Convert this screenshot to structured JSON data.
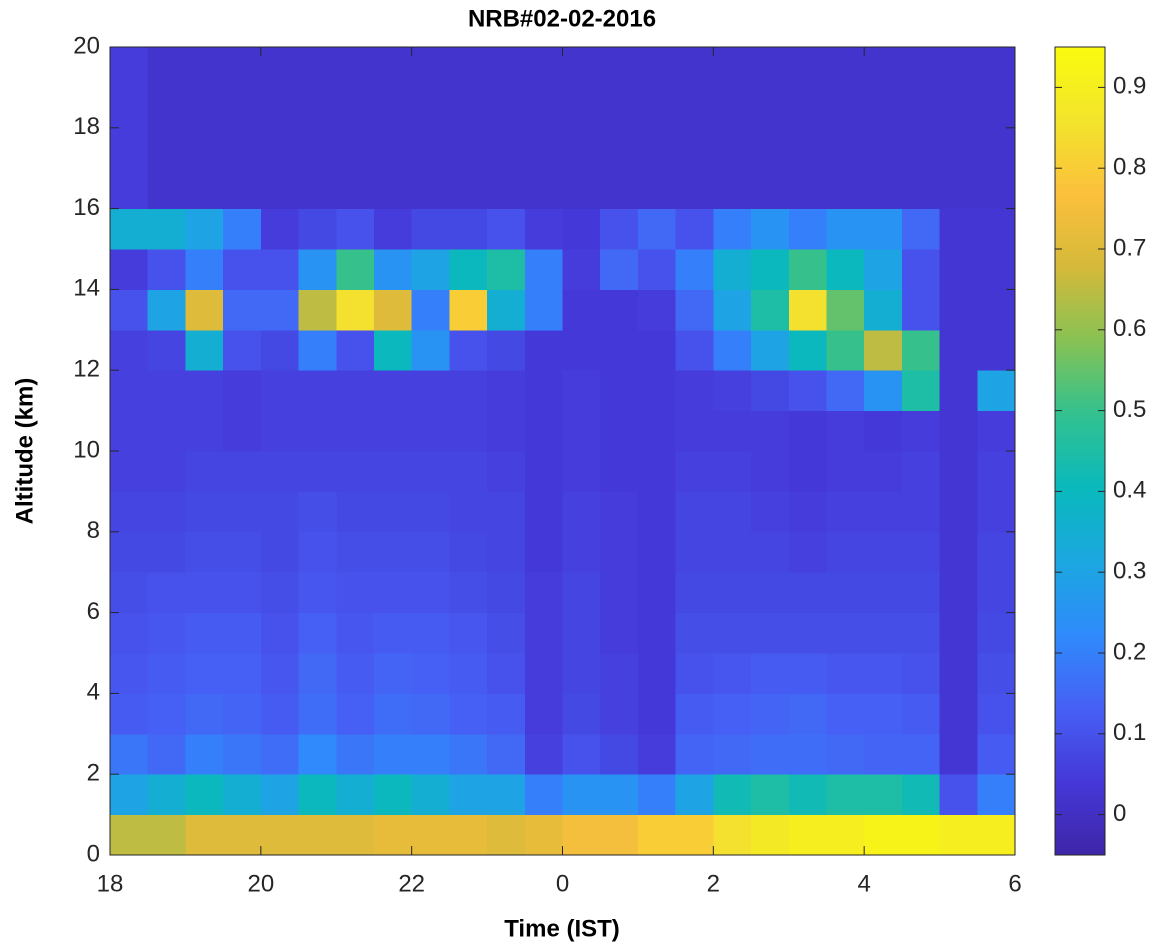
{
  "chart_data": {
    "type": "heatmap",
    "title": "NRB#02-02-2016",
    "x_label": "Time (IST)",
    "y_label": "Altitude (km)",
    "xlim": [
      18,
      30
    ],
    "xticks": [
      18,
      20,
      22,
      {
        "value": 24,
        "label": "0"
      },
      {
        "value": 26,
        "label": "2"
      },
      {
        "value": 28,
        "label": "4"
      },
      {
        "value": 30,
        "label": "6"
      }
    ],
    "ylim": [
      0,
      20
    ],
    "yticks": [
      0,
      2,
      4,
      6,
      8,
      10,
      12,
      14,
      16,
      18,
      20
    ],
    "clim": [
      -0.05,
      0.95
    ],
    "cticks": [
      0,
      0.1,
      0.2,
      0.3,
      0.4,
      0.5,
      0.6,
      0.7,
      0.8,
      0.9
    ],
    "colormap": [
      "#3e26a8",
      "#4538d8",
      "#4660f5",
      "#2f8bfb",
      "#1ba7e0",
      "#0ab9bc",
      "#32c18f",
      "#87c254",
      "#d5b93a",
      "#fbc03c",
      "#f3e42c",
      "#f9fb0e"
    ],
    "x": [
      18.25,
      18.75,
      19.25,
      19.75,
      20.25,
      20.75,
      21.25,
      21.75,
      22.25,
      22.75,
      23.25,
      23.75,
      24.25,
      24.75,
      25.25,
      25.75,
      26.25,
      26.75,
      27.25,
      27.75,
      28.25,
      28.75,
      29.25,
      29.75
    ],
    "y": [
      0.5,
      1.5,
      2.5,
      3.5,
      4.5,
      5.5,
      6.5,
      7.5,
      8.5,
      9.5,
      10.5,
      11.5,
      12.5,
      13.5,
      14.5,
      15.5,
      16.5,
      17.5,
      18.5,
      19.5
    ],
    "z": [
      [
        0.65,
        0.65,
        0.7,
        0.7,
        0.7,
        0.7,
        0.7,
        0.72,
        0.72,
        0.72,
        0.7,
        0.72,
        0.75,
        0.75,
        0.8,
        0.8,
        0.85,
        0.88,
        0.9,
        0.9,
        0.92,
        0.92,
        0.9,
        0.9
      ],
      [
        0.3,
        0.35,
        0.4,
        0.35,
        0.3,
        0.4,
        0.35,
        0.4,
        0.35,
        0.3,
        0.3,
        0.2,
        0.25,
        0.25,
        0.2,
        0.3,
        0.42,
        0.45,
        0.42,
        0.45,
        0.45,
        0.42,
        0.1,
        0.2
      ],
      [
        0.18,
        0.15,
        0.2,
        0.18,
        0.16,
        0.22,
        0.18,
        0.2,
        0.2,
        0.18,
        0.15,
        0.06,
        0.1,
        0.08,
        0.05,
        0.14,
        0.15,
        0.16,
        0.16,
        0.15,
        0.14,
        0.14,
        0.03,
        0.12
      ],
      [
        0.12,
        0.13,
        0.15,
        0.14,
        0.12,
        0.16,
        0.13,
        0.16,
        0.15,
        0.13,
        0.12,
        0.05,
        0.08,
        0.06,
        0.04,
        0.12,
        0.13,
        0.14,
        0.15,
        0.13,
        0.13,
        0.12,
        0.03,
        0.1
      ],
      [
        0.11,
        0.12,
        0.13,
        0.13,
        0.11,
        0.15,
        0.12,
        0.14,
        0.13,
        0.12,
        0.1,
        0.05,
        0.07,
        0.06,
        0.04,
        0.1,
        0.11,
        0.12,
        0.12,
        0.11,
        0.11,
        0.1,
        0.03,
        0.09
      ],
      [
        0.1,
        0.11,
        0.12,
        0.12,
        0.1,
        0.13,
        0.11,
        0.12,
        0.12,
        0.11,
        0.09,
        0.05,
        0.07,
        0.05,
        0.04,
        0.09,
        0.09,
        0.09,
        0.09,
        0.09,
        0.09,
        0.09,
        0.03,
        0.08
      ],
      [
        0.09,
        0.1,
        0.1,
        0.1,
        0.09,
        0.11,
        0.1,
        0.1,
        0.1,
        0.09,
        0.08,
        0.05,
        0.07,
        0.05,
        0.04,
        0.08,
        0.08,
        0.08,
        0.08,
        0.08,
        0.08,
        0.08,
        0.03,
        0.07
      ],
      [
        0.08,
        0.08,
        0.09,
        0.09,
        0.08,
        0.1,
        0.09,
        0.09,
        0.09,
        0.08,
        0.07,
        0.04,
        0.06,
        0.05,
        0.04,
        0.07,
        0.07,
        0.07,
        0.06,
        0.07,
        0.07,
        0.07,
        0.03,
        0.07
      ],
      [
        0.07,
        0.07,
        0.08,
        0.08,
        0.08,
        0.09,
        0.08,
        0.08,
        0.08,
        0.07,
        0.07,
        0.04,
        0.06,
        0.05,
        0.04,
        0.07,
        0.07,
        0.06,
        0.05,
        0.06,
        0.06,
        0.06,
        0.03,
        0.06
      ],
      [
        0.06,
        0.06,
        0.07,
        0.07,
        0.07,
        0.07,
        0.07,
        0.07,
        0.07,
        0.07,
        0.06,
        0.04,
        0.05,
        0.04,
        0.04,
        0.06,
        0.06,
        0.05,
        0.04,
        0.05,
        0.05,
        0.06,
        0.03,
        0.06
      ],
      [
        0.06,
        0.06,
        0.06,
        0.05,
        0.06,
        0.06,
        0.06,
        0.06,
        0.06,
        0.06,
        0.05,
        0.04,
        0.05,
        0.04,
        0.04,
        0.05,
        0.05,
        0.05,
        0.04,
        0.05,
        0.04,
        0.05,
        0.03,
        0.05
      ],
      [
        0.06,
        0.06,
        0.06,
        0.05,
        0.06,
        0.06,
        0.06,
        0.06,
        0.06,
        0.06,
        0.05,
        0.04,
        0.05,
        0.04,
        0.04,
        0.05,
        0.06,
        0.08,
        0.1,
        0.15,
        0.25,
        0.45,
        0.03,
        0.3
      ],
      [
        0.06,
        0.07,
        0.35,
        0.1,
        0.08,
        0.2,
        0.1,
        0.4,
        0.25,
        0.1,
        0.08,
        0.04,
        0.04,
        0.04,
        0.04,
        0.1,
        0.2,
        0.3,
        0.4,
        0.5,
        0.65,
        0.5,
        0.03,
        0.03
      ],
      [
        0.1,
        0.3,
        0.7,
        0.15,
        0.15,
        0.65,
        0.85,
        0.7,
        0.2,
        0.8,
        0.35,
        0.2,
        0.04,
        0.04,
        0.05,
        0.15,
        0.3,
        0.45,
        0.85,
        0.55,
        0.35,
        0.1,
        0.03,
        0.03
      ],
      [
        0.05,
        0.1,
        0.2,
        0.1,
        0.1,
        0.25,
        0.5,
        0.25,
        0.3,
        0.4,
        0.45,
        0.2,
        0.05,
        0.15,
        0.1,
        0.2,
        0.35,
        0.4,
        0.5,
        0.4,
        0.3,
        0.1,
        0.03,
        0.03
      ],
      [
        0.35,
        0.35,
        0.3,
        0.2,
        0.05,
        0.08,
        0.1,
        0.05,
        0.08,
        0.08,
        0.1,
        0.05,
        0.04,
        0.1,
        0.15,
        0.1,
        0.2,
        0.25,
        0.2,
        0.25,
        0.25,
        0.15,
        0.03,
        0.03
      ],
      [
        0.05,
        0.02,
        0.02,
        0.02,
        0.02,
        0.02,
        0.02,
        0.02,
        0.02,
        0.02,
        0.02,
        0.02,
        0.02,
        0.02,
        0.02,
        0.02,
        0.02,
        0.02,
        0.02,
        0.02,
        0.02,
        0.02,
        0.02,
        0.02
      ],
      [
        0.05,
        0.02,
        0.02,
        0.02,
        0.02,
        0.02,
        0.02,
        0.02,
        0.02,
        0.02,
        0.02,
        0.02,
        0.02,
        0.02,
        0.02,
        0.02,
        0.02,
        0.02,
        0.02,
        0.02,
        0.02,
        0.02,
        0.02,
        0.02
      ],
      [
        0.05,
        0.02,
        0.02,
        0.02,
        0.02,
        0.02,
        0.02,
        0.02,
        0.02,
        0.02,
        0.02,
        0.02,
        0.02,
        0.02,
        0.02,
        0.02,
        0.02,
        0.02,
        0.02,
        0.02,
        0.02,
        0.02,
        0.02,
        0.02
      ],
      [
        0.05,
        0.02,
        0.02,
        0.02,
        0.02,
        0.02,
        0.02,
        0.02,
        0.02,
        0.02,
        0.02,
        0.02,
        0.02,
        0.02,
        0.02,
        0.02,
        0.02,
        0.02,
        0.02,
        0.02,
        0.02,
        0.02,
        0.02,
        0.02
      ]
    ]
  }
}
